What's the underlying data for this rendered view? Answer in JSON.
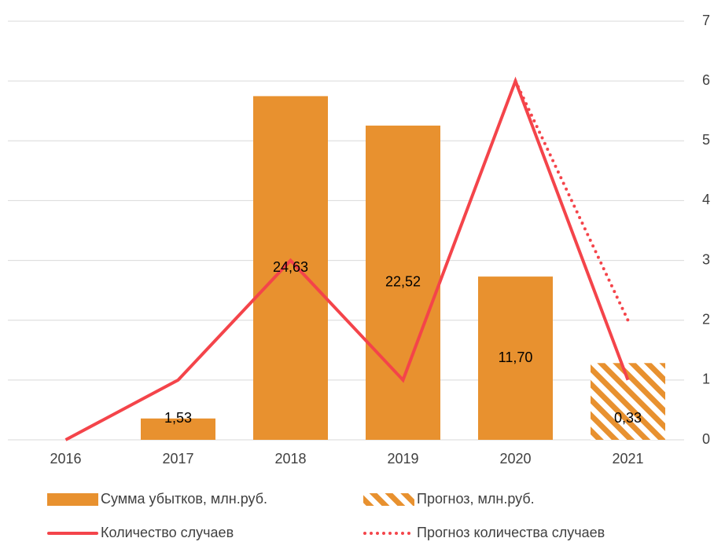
{
  "chart_data": {
    "type": "combo",
    "categories": [
      "2016",
      "2017",
      "2018",
      "2019",
      "2020",
      "2021"
    ],
    "ylim": [
      0,
      30
    ],
    "y2lim": [
      0,
      7
    ],
    "y2ticks": [
      0,
      1,
      2,
      3,
      4,
      5,
      6,
      7
    ],
    "grid": true,
    "legend": "bottom",
    "series": [
      {
        "name": "Сумма убытков, млн.руб.",
        "type": "bar",
        "style": "solid",
        "color": "#e8912f",
        "values": [
          null,
          1.53,
          24.63,
          22.52,
          11.7,
          0.33
        ],
        "value_labels": [
          null,
          "1,53",
          "24,63",
          "22,52",
          "11,70",
          "0,33"
        ]
      },
      {
        "name": "Прогноз, млн.руб.",
        "type": "bar",
        "style": "hatched",
        "color": "#e8912f",
        "values": [
          null,
          null,
          null,
          null,
          null,
          5.5
        ]
      },
      {
        "name": "Количество случаев",
        "type": "line",
        "style": "solid",
        "color": "#f4444a",
        "axis": "y2",
        "values": [
          0,
          1,
          3,
          1,
          6,
          1
        ]
      },
      {
        "name": "Прогноз количества случаев",
        "type": "line",
        "style": "dotted",
        "color": "#f4444a",
        "axis": "y2",
        "values": [
          null,
          null,
          null,
          null,
          6,
          2
        ]
      }
    ]
  }
}
